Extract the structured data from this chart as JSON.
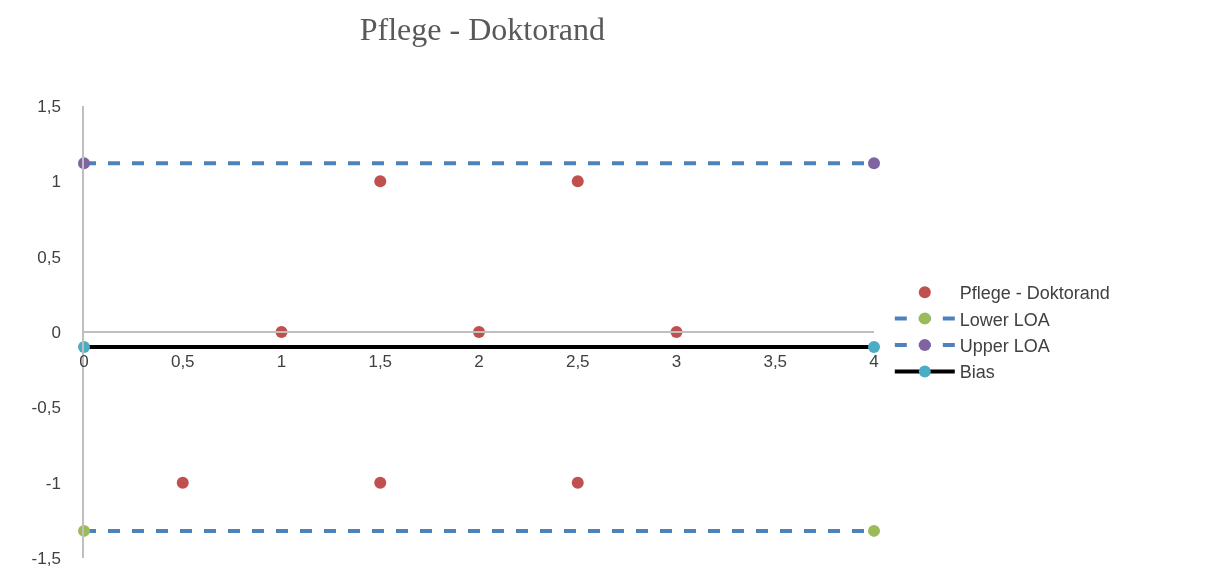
{
  "chart_data": {
    "type": "scatter",
    "title": "Pflege - Doktorand",
    "xlim": [
      0,
      4
    ],
    "xticks": [
      0,
      {
        "value": 0.5,
        "label": "0,5"
      },
      1,
      {
        "value": 1.5,
        "label": "1,5"
      },
      2,
      {
        "value": 2.5,
        "label": "2,5"
      },
      3,
      {
        "value": 3.5,
        "label": "3,5"
      },
      4
    ],
    "ylim": [
      -1.5,
      1.5
    ],
    "yticks": [
      {
        "value": -1.5,
        "label": "-1,5"
      },
      -1,
      {
        "value": -0.5,
        "label": "-0,5"
      },
      0,
      {
        "value": 0.5,
        "label": "0,5"
      },
      1,
      {
        "value": 1.5,
        "label": "1,5"
      }
    ],
    "legend": "right",
    "marker": "circle",
    "series": [
      {
        "name": "Pflege - Doktorand",
        "color": "#c0504d",
        "x": [
          0.5,
          1,
          1.5,
          1.5,
          2,
          2.5,
          2.5,
          3
        ],
        "values": [
          -1,
          0,
          1,
          -1,
          0,
          1,
          -1,
          0
        ]
      },
      {
        "name": "Lower LOA",
        "type": "line",
        "color": "#4f81bd",
        "colors": [
          "#9bbb59",
          "#9bbb59"
        ],
        "line_style": "dashed",
        "x": [
          0,
          4
        ],
        "values": [
          -1.32,
          -1.32
        ]
      },
      {
        "name": "Upper LOA",
        "type": "line",
        "color": "#4f81bd",
        "colors": [
          "#8064a2",
          "#8064a2"
        ],
        "line_style": "dashed",
        "x": [
          0,
          4
        ],
        "values": [
          1.12,
          1.12
        ]
      },
      {
        "name": "Bias",
        "type": "line",
        "color": "#000000",
        "colors": [
          "#4bacc6",
          "#4bacc6"
        ],
        "line_style": "solid",
        "x": [
          0,
          4
        ],
        "values": [
          -0.1,
          -0.1
        ]
      }
    ]
  }
}
